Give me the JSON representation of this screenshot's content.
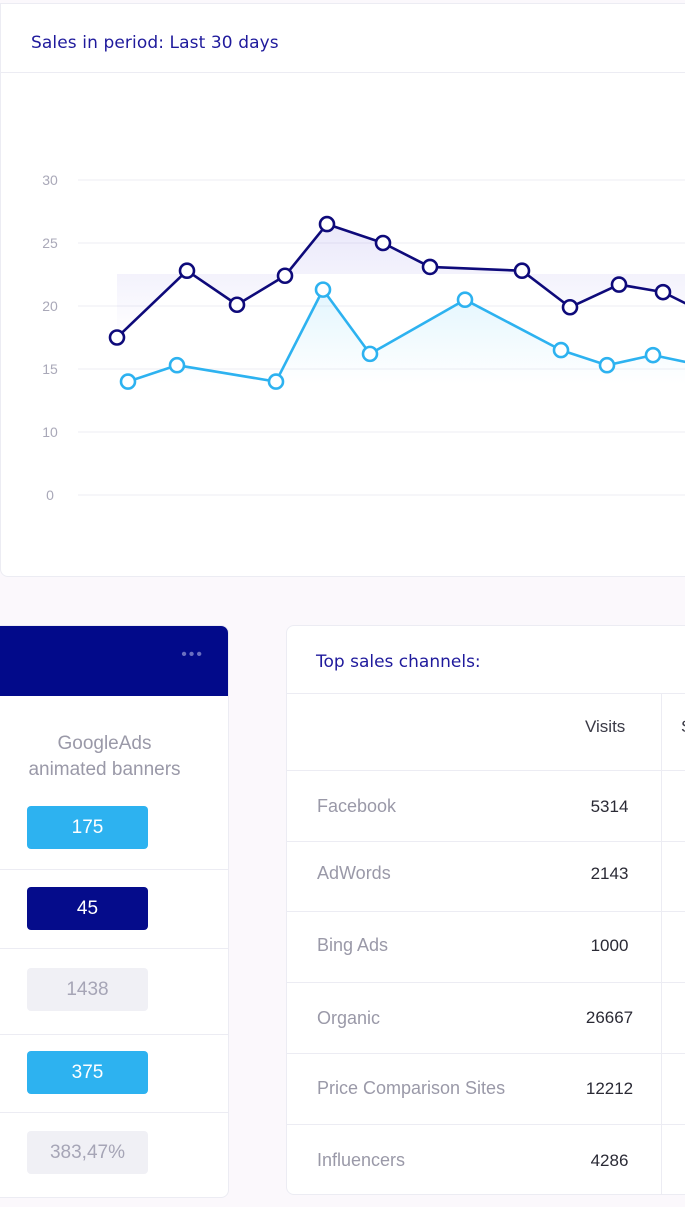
{
  "chart": {
    "title": "Sales in period: Last 30 days",
    "colors": {
      "series_dark": "#0e0a7a",
      "series_light": "#2db2f0"
    }
  },
  "chart_data": {
    "type": "line",
    "ytick_labels": [
      "30",
      "25",
      "20",
      "15",
      "10",
      "0"
    ],
    "series": [
      {
        "values": [
          17.5,
          22.8,
          20.1,
          22.4,
          26.5,
          25.0,
          23.1,
          22.8,
          19.9,
          21.7,
          21.1,
          19.6
        ]
      },
      {
        "values": [
          14.0,
          15.3,
          14.0,
          21.3,
          16.2,
          20.5,
          16.5,
          15.3,
          16.1,
          15.3
        ]
      }
    ]
  },
  "ad": {
    "name_line1": "GoogleAds",
    "name_line2": "animated banners",
    "more_icon": "more-dots-icon",
    "values": [
      "175",
      "45",
      "1438",
      "375",
      "383,47%"
    ]
  },
  "channels": {
    "title": "Top sales channels:",
    "columns": [
      "",
      "Visits",
      "S"
    ],
    "rows": [
      {
        "name": "Facebook",
        "visits": "5314"
      },
      {
        "name": "AdWords",
        "visits": "2143"
      },
      {
        "name": "Bing Ads",
        "visits": "1000"
      },
      {
        "name": "Organic",
        "visits": "26667"
      },
      {
        "name": "Price Comparison Sites",
        "visits": "12212"
      },
      {
        "name": "Influencers",
        "visits": "4286"
      }
    ]
  }
}
